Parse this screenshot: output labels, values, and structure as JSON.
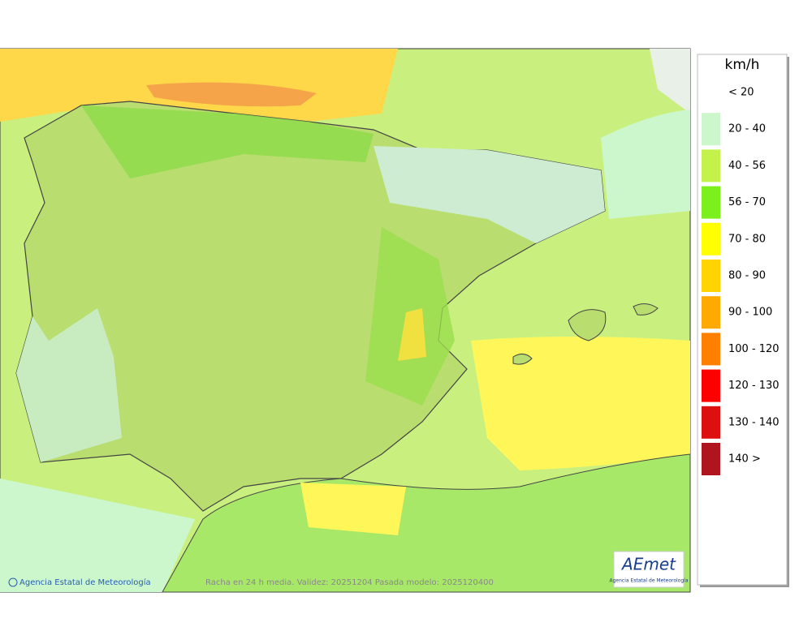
{
  "map": {
    "credit": "Agencia Estatal de Meteorología",
    "caption": "Racha en 24 h media. Validez: 20251204 Pasada modelo: 2025120400",
    "logo": {
      "name": "AEmet",
      "subtitle": "Agencia Estatal de Meteorología"
    }
  },
  "legend": {
    "unit": "km/h",
    "items": [
      {
        "label": "< 20"
      },
      {
        "label": "20 - 40",
        "color": "#ccf7cc"
      },
      {
        "label": "40 - 56",
        "color": "#c4f24a"
      },
      {
        "label": "56 - 70",
        "color": "#7cf01c"
      },
      {
        "label": "70 - 80",
        "color": "#ffff00"
      },
      {
        "label": "80 - 90",
        "color": "#ffd400"
      },
      {
        "label": "90 - 100",
        "color": "#ffaa00"
      },
      {
        "label": "100 - 120",
        "color": "#ff8000"
      },
      {
        "label": "120 - 130",
        "color": "#ff0000"
      },
      {
        "label": "130 - 140",
        "color": "#dd1010"
      },
      {
        "label": "140 >",
        "color": "#b0141e"
      }
    ]
  }
}
